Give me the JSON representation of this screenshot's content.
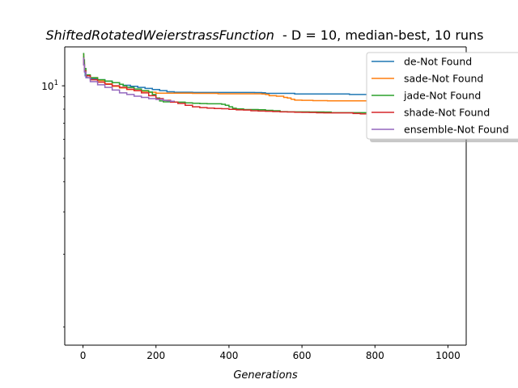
{
  "chart_data": {
    "type": "line",
    "title_italic": "ShiftedRotatedWeierstrassFunction",
    "title_rest": "  - D = 10, median-best, 10 runs",
    "xlabel": "Generations",
    "ylabel": "",
    "xscale": "linear",
    "yscale": "log",
    "xlim": [
      -50,
      1050
    ],
    "ylim": [
      0.84,
      14.5
    ],
    "xticks": [
      0,
      200,
      400,
      600,
      800,
      1000
    ],
    "xtick_labels": [
      "0",
      "200",
      "400",
      "600",
      "800",
      "1000"
    ],
    "yticks": [
      10
    ],
    "ytick_labels": [
      "10^1"
    ],
    "ytick_base": "10",
    "ytick_exp": "1",
    "legend_position": "top-right",
    "series": [
      {
        "name": "de-Not Found",
        "color": "#1f77b4",
        "points": [
          [
            0,
            13.2
          ],
          [
            2,
            12.3
          ],
          [
            4,
            11.5
          ],
          [
            6,
            11.0
          ],
          [
            10,
            10.8
          ],
          [
            20,
            10.7
          ],
          [
            40,
            10.6
          ],
          [
            60,
            10.45
          ],
          [
            80,
            10.3
          ],
          [
            100,
            10.15
          ],
          [
            110,
            10.05
          ],
          [
            130,
            9.95
          ],
          [
            150,
            9.85
          ],
          [
            170,
            9.75
          ],
          [
            190,
            9.65
          ],
          [
            210,
            9.55
          ],
          [
            230,
            9.45
          ],
          [
            250,
            9.4
          ],
          [
            300,
            9.38
          ],
          [
            400,
            9.38
          ],
          [
            470,
            9.37
          ],
          [
            490,
            9.36
          ],
          [
            500,
            9.3
          ],
          [
            560,
            9.3
          ],
          [
            580,
            9.25
          ],
          [
            720,
            9.25
          ],
          [
            730,
            9.2
          ],
          [
            800,
            9.2
          ],
          [
            810,
            9.15
          ],
          [
            1000,
            9.15
          ]
        ]
      },
      {
        "name": "sade-Not Found",
        "color": "#ff7f0e",
        "points": [
          [
            0,
            13.5
          ],
          [
            2,
            12.5
          ],
          [
            4,
            11.6
          ],
          [
            8,
            11.0
          ],
          [
            20,
            10.8
          ],
          [
            40,
            10.5
          ],
          [
            60,
            10.2
          ],
          [
            80,
            9.95
          ],
          [
            100,
            9.8
          ],
          [
            120,
            9.65
          ],
          [
            140,
            9.55
          ],
          [
            160,
            9.48
          ],
          [
            180,
            9.4
          ],
          [
            200,
            9.32
          ],
          [
            240,
            9.32
          ],
          [
            300,
            9.3
          ],
          [
            360,
            9.3
          ],
          [
            370,
            9.27
          ],
          [
            480,
            9.27
          ],
          [
            490,
            9.25
          ],
          [
            500,
            9.2
          ],
          [
            510,
            9.1
          ],
          [
            530,
            9.05
          ],
          [
            550,
            8.95
          ],
          [
            560,
            8.9
          ],
          [
            570,
            8.8
          ],
          [
            580,
            8.72
          ],
          [
            600,
            8.7
          ],
          [
            630,
            8.68
          ],
          [
            660,
            8.68
          ],
          [
            670,
            8.66
          ],
          [
            830,
            8.66
          ],
          [
            840,
            8.5
          ],
          [
            870,
            8.5
          ],
          [
            880,
            8.45
          ],
          [
            900,
            8.45
          ],
          [
            910,
            8.42
          ],
          [
            1000,
            8.42
          ]
        ]
      },
      {
        "name": "jade-Not Found",
        "color": "#2ca02c",
        "points": [
          [
            0,
            13.6
          ],
          [
            2,
            12.8
          ],
          [
            4,
            11.8
          ],
          [
            8,
            11.1
          ],
          [
            20,
            10.8
          ],
          [
            40,
            10.6
          ],
          [
            60,
            10.45
          ],
          [
            80,
            10.3
          ],
          [
            100,
            10.15
          ],
          [
            110,
            10.0
          ],
          [
            120,
            9.85
          ],
          [
            140,
            9.7
          ],
          [
            160,
            9.55
          ],
          [
            180,
            9.42
          ],
          [
            190,
            9.2
          ],
          [
            200,
            8.9
          ],
          [
            210,
            8.65
          ],
          [
            220,
            8.58
          ],
          [
            240,
            8.56
          ],
          [
            260,
            8.55
          ],
          [
            280,
            8.5
          ],
          [
            300,
            8.46
          ],
          [
            320,
            8.44
          ],
          [
            340,
            8.42
          ],
          [
            380,
            8.38
          ],
          [
            390,
            8.3
          ],
          [
            400,
            8.18
          ],
          [
            410,
            8.07
          ],
          [
            420,
            8.02
          ],
          [
            440,
            7.97
          ],
          [
            480,
            7.96
          ],
          [
            500,
            7.91
          ],
          [
            520,
            7.88
          ],
          [
            540,
            7.81
          ],
          [
            560,
            7.8
          ],
          [
            600,
            7.8
          ],
          [
            620,
            7.79
          ],
          [
            660,
            7.78
          ],
          [
            680,
            7.74
          ],
          [
            720,
            7.74
          ],
          [
            760,
            7.74
          ],
          [
            780,
            7.69
          ],
          [
            800,
            7.69
          ],
          [
            820,
            7.69
          ],
          [
            840,
            7.68
          ],
          [
            880,
            7.66
          ],
          [
            900,
            7.66
          ],
          [
            920,
            7.63
          ],
          [
            940,
            7.6
          ],
          [
            960,
            7.54
          ],
          [
            980,
            7.54
          ],
          [
            1000,
            7.54
          ]
        ]
      },
      {
        "name": "shade-Not Found",
        "color": "#d62728",
        "points": [
          [
            0,
            13.0
          ],
          [
            2,
            12.2
          ],
          [
            4,
            11.5
          ],
          [
            8,
            11.0
          ],
          [
            20,
            10.6
          ],
          [
            40,
            10.35
          ],
          [
            60,
            10.15
          ],
          [
            80,
            10.0
          ],
          [
            100,
            9.85
          ],
          [
            120,
            9.68
          ],
          [
            140,
            9.55
          ],
          [
            160,
            9.35
          ],
          [
            180,
            9.1
          ],
          [
            200,
            8.85
          ],
          [
            220,
            8.7
          ],
          [
            240,
            8.55
          ],
          [
            260,
            8.45
          ],
          [
            280,
            8.3
          ],
          [
            300,
            8.18
          ],
          [
            320,
            8.12
          ],
          [
            340,
            8.08
          ],
          [
            360,
            8.05
          ],
          [
            380,
            8.03
          ],
          [
            400,
            7.99
          ],
          [
            420,
            7.95
          ],
          [
            440,
            7.93
          ],
          [
            460,
            7.88
          ],
          [
            480,
            7.86
          ],
          [
            500,
            7.84
          ],
          [
            520,
            7.82
          ],
          [
            540,
            7.8
          ],
          [
            560,
            7.79
          ],
          [
            580,
            7.77
          ],
          [
            600,
            7.76
          ],
          [
            620,
            7.75
          ],
          [
            640,
            7.73
          ],
          [
            660,
            7.72
          ],
          [
            680,
            7.72
          ],
          [
            700,
            7.72
          ],
          [
            720,
            7.72
          ],
          [
            740,
            7.68
          ],
          [
            760,
            7.65
          ],
          [
            780,
            7.65
          ],
          [
            800,
            7.65
          ],
          [
            820,
            7.64
          ],
          [
            840,
            7.63
          ],
          [
            860,
            7.62
          ],
          [
            880,
            7.61
          ],
          [
            900,
            7.55
          ],
          [
            920,
            7.49
          ],
          [
            940,
            7.48
          ],
          [
            960,
            7.47
          ],
          [
            980,
            7.47
          ],
          [
            1000,
            7.47
          ]
        ]
      },
      {
        "name": "ensemble-Not Found",
        "color": "#9467bd",
        "points": [
          [
            0,
            13.0
          ],
          [
            2,
            12.2
          ],
          [
            4,
            11.4
          ],
          [
            8,
            10.8
          ],
          [
            20,
            10.4
          ],
          [
            40,
            10.1
          ],
          [
            60,
            9.85
          ],
          [
            80,
            9.6
          ],
          [
            100,
            9.35
          ],
          [
            120,
            9.2
          ],
          [
            140,
            9.05
          ],
          [
            160,
            8.95
          ],
          [
            180,
            8.85
          ],
          [
            200,
            8.78
          ],
          [
            220,
            8.7
          ],
          [
            230,
            8.66
          ],
          [
            240,
            8.63
          ],
          [
            250,
            8.61
          ]
        ]
      }
    ]
  }
}
